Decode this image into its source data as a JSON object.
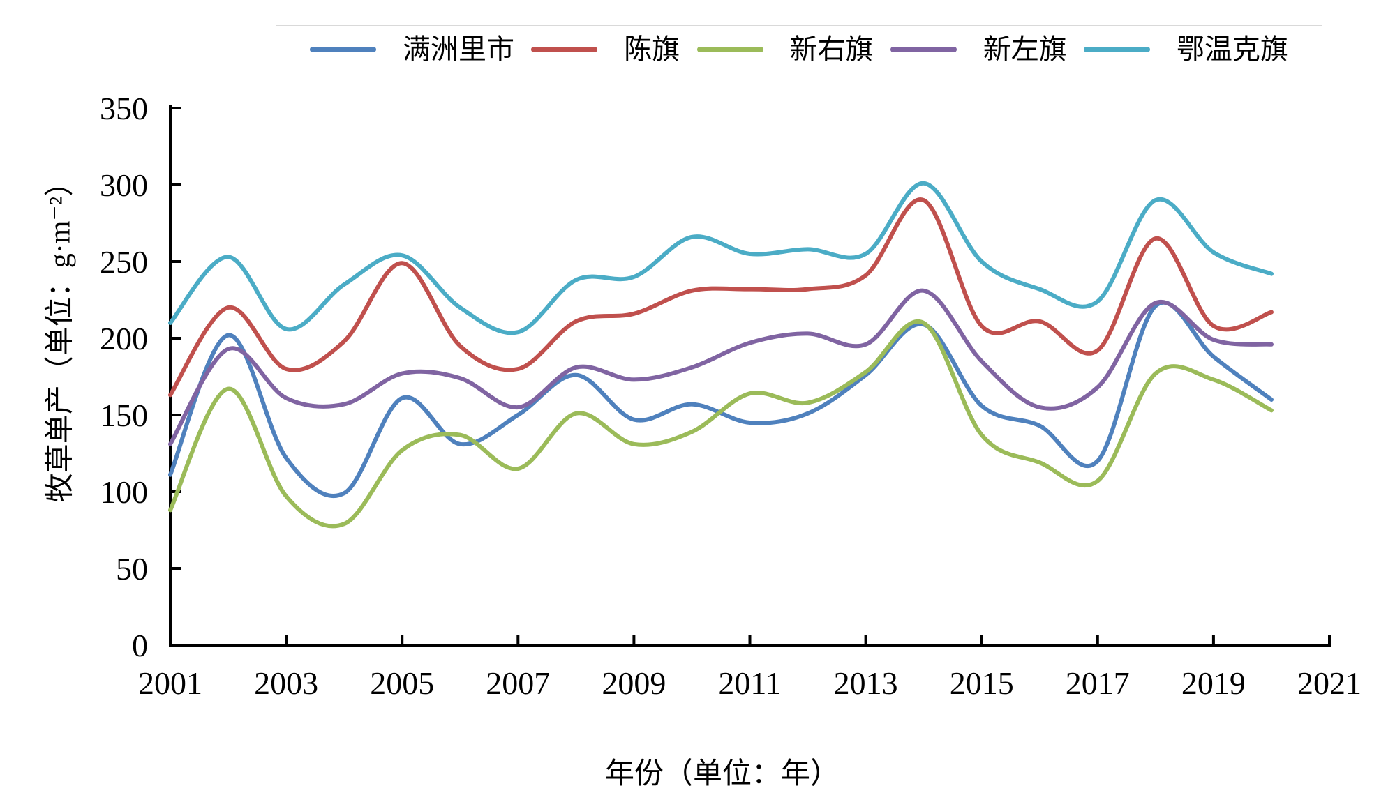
{
  "chart_data": {
    "type": "line",
    "smooth": true,
    "grid": false,
    "legend_position": "top",
    "xlabel": "年份（单位：年）",
    "ylabel": "牧草单产（单位：g·m⁻²）",
    "xlim": [
      2001,
      2021
    ],
    "ylim": [
      0,
      350
    ],
    "x_ticks": [
      2001,
      2003,
      2005,
      2007,
      2009,
      2011,
      2013,
      2015,
      2017,
      2019,
      2021
    ],
    "y_ticks": [
      0,
      50,
      100,
      150,
      200,
      250,
      300,
      350
    ],
    "x": [
      2001,
      2002,
      2003,
      2004,
      2005,
      2006,
      2007,
      2008,
      2009,
      2010,
      2011,
      2012,
      2013,
      2014,
      2015,
      2016,
      2017,
      2018,
      2019,
      2020
    ],
    "series": [
      {
        "name": "满洲里市",
        "color": "#4F81BD",
        "values": [
          111,
          202,
          122,
          99,
          161,
          131,
          150,
          176,
          147,
          157,
          145,
          151,
          176,
          209,
          156,
          143,
          120,
          221,
          188,
          160
        ]
      },
      {
        "name": "陈旗",
        "color": "#C0504D",
        "values": [
          163,
          220,
          180,
          198,
          249,
          195,
          180,
          211,
          216,
          231,
          232,
          232,
          241,
          290,
          208,
          211,
          192,
          265,
          208,
          217
        ]
      },
      {
        "name": "新右旗",
        "color": "#9BBB59",
        "values": [
          88,
          167,
          97,
          79,
          127,
          137,
          115,
          151,
          131,
          139,
          164,
          158,
          178,
          210,
          137,
          119,
          107,
          177,
          173,
          153
        ]
      },
      {
        "name": "新左旗",
        "color": "#8064A2",
        "values": [
          131,
          193,
          161,
          157,
          177,
          174,
          155,
          181,
          173,
          181,
          197,
          203,
          196,
          231,
          185,
          155,
          168,
          223,
          199,
          196
        ]
      },
      {
        "name": "鄂温克旗",
        "color": "#4BACC6",
        "values": [
          210,
          253,
          206,
          235,
          254,
          220,
          204,
          238,
          240,
          266,
          255,
          258,
          255,
          301,
          250,
          232,
          224,
          290,
          256,
          242
        ]
      }
    ]
  }
}
